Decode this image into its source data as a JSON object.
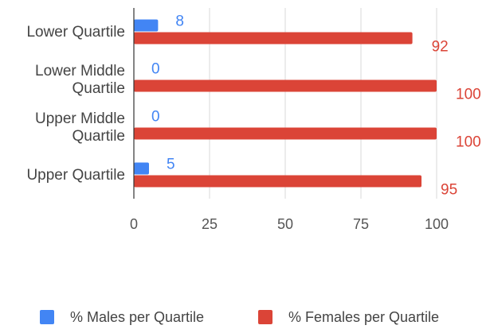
{
  "chart_data": {
    "type": "bar",
    "orientation": "horizontal",
    "categories": [
      [
        "Lower Quartile"
      ],
      [
        "Lower Middle",
        "Quartile"
      ],
      [
        "Upper Middle",
        "Quartile"
      ],
      [
        "Upper Quartile"
      ]
    ],
    "series": [
      {
        "name": "% Males per Quartile",
        "values": [
          8,
          0,
          0,
          5
        ],
        "color": "#4285f4"
      },
      {
        "name": "% Females per Quartile",
        "values": [
          92,
          100,
          100,
          95
        ],
        "color": "#db4437"
      }
    ],
    "xlim": [
      0,
      100
    ],
    "xticks": [
      0,
      25,
      50,
      75,
      100
    ],
    "grid": true,
    "legend": "bottom"
  }
}
